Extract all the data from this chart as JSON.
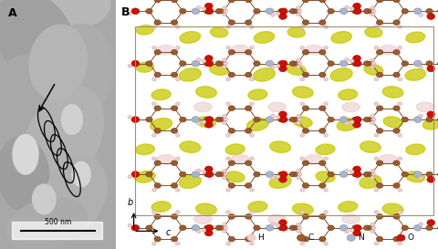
{
  "fig_width": 4.8,
  "fig_height": 2.73,
  "dpi": 100,
  "panel_A_label": "A",
  "panel_B_label": "B",
  "scale_bar_text": "500 nm",
  "axis_b_label": "b",
  "axis_c_label": "c",
  "legend_items": [
    {
      "label": "H",
      "color": "#f2d0d0",
      "edge": "#d4b0b0"
    },
    {
      "label": "C",
      "color": "#9c5a2d",
      "edge": "#7a3b1e"
    },
    {
      "label": "N",
      "color": "#aab4cc",
      "edge": "#8090b0"
    },
    {
      "label": "O",
      "color": "#cc1100",
      "edge": "#aa0000"
    }
  ],
  "molecule_brown": "#9c5a2d",
  "molecule_red": "#cc1100",
  "molecule_blue_gray": "#aab4cc",
  "molecule_pink": "#f2d0d0",
  "yellow_blob_color": "#c8c800",
  "pink_blob_color": "#e8c8c8",
  "crystal_box_color": "#a09070",
  "panel_A_bg": "#a8a8a8",
  "panel_B_bg": "#ffffff"
}
